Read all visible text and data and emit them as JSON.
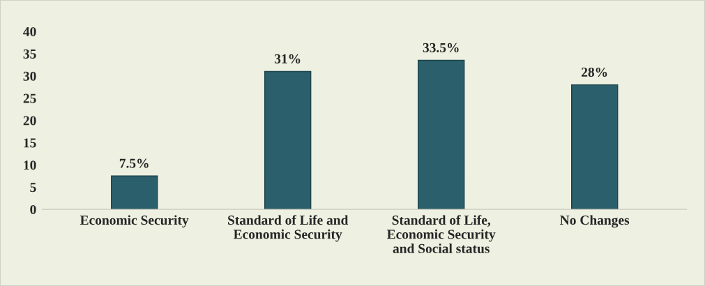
{
  "chart_data": {
    "type": "bar",
    "categories": [
      "Economic Security",
      "Standard of Life and\nEconomic Security",
      "Standard of Life,\nEconomic Security\nand Social status",
      "No Changes"
    ],
    "values": [
      7.5,
      31,
      33.5,
      28
    ],
    "value_labels": [
      "7.5%",
      "31%",
      "33.5%",
      "28%"
    ],
    "color": "#2b5f6b",
    "ylim": [
      0,
      40
    ],
    "yticks": [
      0,
      5,
      10,
      15,
      20,
      25,
      30,
      35,
      40
    ],
    "grid": false,
    "legend": false
  }
}
